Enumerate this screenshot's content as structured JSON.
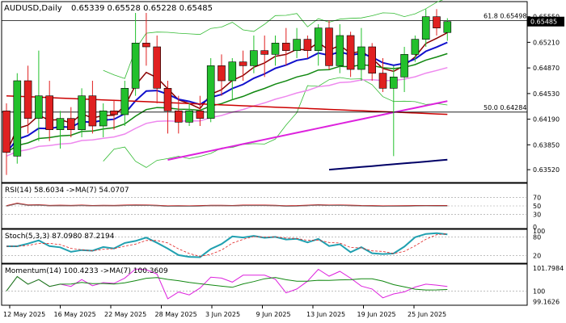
{
  "chart_data": {
    "type": "candlestick",
    "symbol_label": "AUDUSD,Daily",
    "ohlc_label": "0.65339 0.65528 0.65228 0.65485",
    "main_ylim": [
      0.6335,
      0.6575
    ],
    "y_ticks": [
      "0.65550",
      "0.65210",
      "0.64870",
      "0.64530",
      "0.64190",
      "0.63850",
      "0.63520"
    ],
    "current_price": "0.65485",
    "fib_levels": [
      {
        "label": "61.8 0.65498",
        "value": 0.65498
      },
      {
        "label": "50.0 0.64284",
        "value": 0.64284
      }
    ],
    "colors": {
      "up": "#22c02c",
      "down": "#e02020",
      "ma_red": "#cc0000",
      "ma_blue": "#1010cc",
      "ma_green": "#118811",
      "ma_maroon": "#8b0000",
      "ma_magenta": "#dd22dd",
      "ma_pink": "#ee88ee",
      "ma_navy": "#000066",
      "band": "#33bb33"
    },
    "dates": [
      "12 May 2025",
      "16 May 2025",
      "22 May 2025",
      "28 May 2025",
      "3 Jun 2025",
      "9 Jun 2025",
      "13 Jun 2025",
      "19 Jun 2025",
      "25 Jun 2025"
    ],
    "candles": [
      [
        0.643,
        0.644,
        0.6345,
        0.6375
      ],
      [
        0.637,
        0.648,
        0.636,
        0.647
      ],
      [
        0.647,
        0.649,
        0.64,
        0.642
      ],
      [
        0.642,
        0.651,
        0.639,
        0.645
      ],
      [
        0.645,
        0.647,
        0.639,
        0.6405
      ],
      [
        0.6405,
        0.643,
        0.638,
        0.642
      ],
      [
        0.642,
        0.6435,
        0.6395,
        0.6405
      ],
      [
        0.6405,
        0.646,
        0.6395,
        0.645
      ],
      [
        0.645,
        0.647,
        0.64,
        0.641
      ],
      [
        0.641,
        0.644,
        0.6395,
        0.643
      ],
      [
        0.643,
        0.6445,
        0.6405,
        0.6425
      ],
      [
        0.6425,
        0.647,
        0.641,
        0.646
      ],
      [
        0.646,
        0.656,
        0.645,
        0.652
      ],
      [
        0.652,
        0.656,
        0.649,
        0.6515
      ],
      [
        0.6515,
        0.653,
        0.644,
        0.646
      ],
      [
        0.646,
        0.647,
        0.64,
        0.643
      ],
      [
        0.643,
        0.645,
        0.64,
        0.6415
      ],
      [
        0.6415,
        0.644,
        0.641,
        0.643
      ],
      [
        0.643,
        0.645,
        0.641,
        0.642
      ],
      [
        0.642,
        0.65,
        0.6415,
        0.649
      ],
      [
        0.649,
        0.6505,
        0.645,
        0.647
      ],
      [
        0.647,
        0.65,
        0.6445,
        0.6495
      ],
      [
        0.6495,
        0.651,
        0.647,
        0.649
      ],
      [
        0.649,
        0.653,
        0.648,
        0.651
      ],
      [
        0.651,
        0.653,
        0.6475,
        0.6505
      ],
      [
        0.6505,
        0.653,
        0.649,
        0.652
      ],
      [
        0.652,
        0.654,
        0.649,
        0.651
      ],
      [
        0.651,
        0.654,
        0.65,
        0.6525
      ],
      [
        0.6525,
        0.653,
        0.65,
        0.651
      ],
      [
        0.651,
        0.6545,
        0.649,
        0.654
      ],
      [
        0.654,
        0.655,
        0.6485,
        0.649
      ],
      [
        0.649,
        0.6545,
        0.648,
        0.653
      ],
      [
        0.653,
        0.6535,
        0.6475,
        0.6485
      ],
      [
        0.6485,
        0.654,
        0.647,
        0.6515
      ],
      [
        0.6515,
        0.652,
        0.647,
        0.648
      ],
      [
        0.648,
        0.65,
        0.6455,
        0.646
      ],
      [
        0.646,
        0.649,
        0.637,
        0.6475
      ],
      [
        0.6475,
        0.6515,
        0.6455,
        0.6505
      ],
      [
        0.6505,
        0.653,
        0.6495,
        0.6525
      ],
      [
        0.6525,
        0.6565,
        0.6515,
        0.6555
      ],
      [
        0.6555,
        0.6565,
        0.653,
        0.654
      ],
      [
        0.6534,
        0.6553,
        0.6523,
        0.65485
      ]
    ],
    "rsi": {
      "label": "RSI(14) 58.6034 ->MA(7) 54.0707",
      "levels": [
        "70",
        "50",
        "30",
        "0"
      ],
      "period": 14
    },
    "stoch": {
      "label": "Stoch(5,3,3) 87.0980 87.2194",
      "levels": [
        "80",
        "20"
      ],
      "right_labels": [
        "100",
        "80",
        "20"
      ]
    },
    "momentum": {
      "label": "Momentum(14) 100.4233 ->MA(7) 100.3609",
      "right_labels": [
        "101.7984",
        "100",
        "99.1626"
      ]
    }
  }
}
